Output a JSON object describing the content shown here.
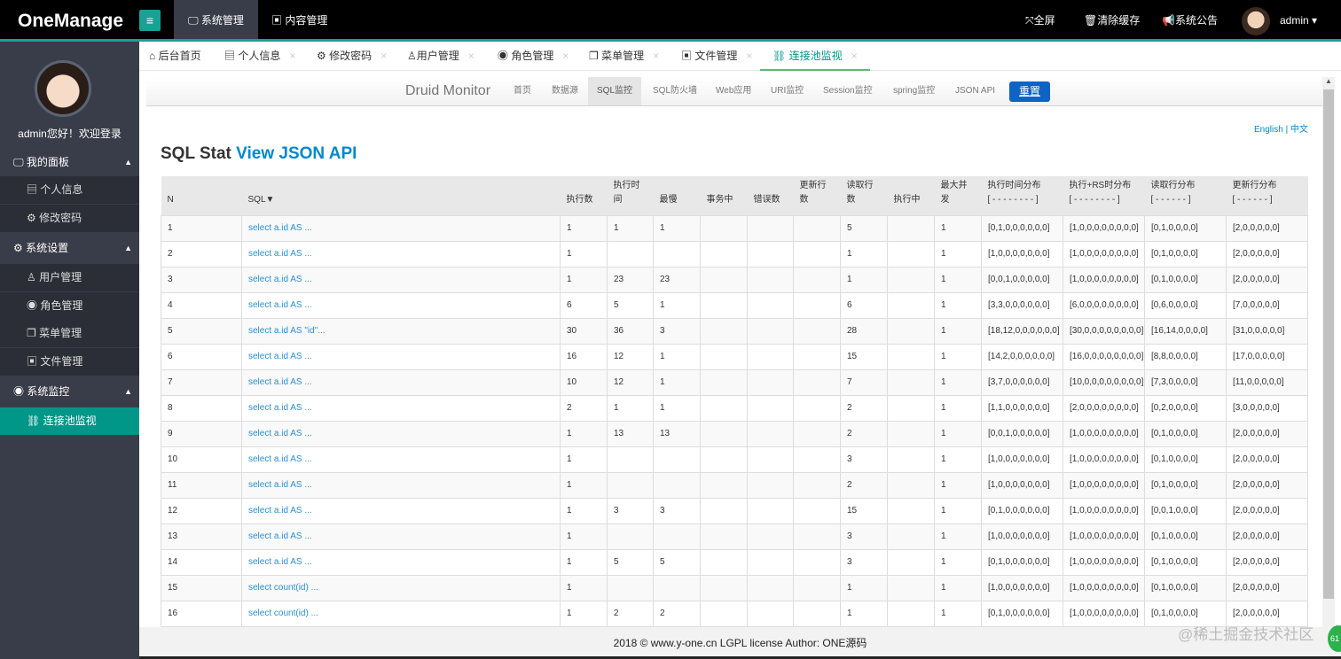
{
  "header": {
    "logo": "OneManage",
    "menu_icon": "hamburger-icon",
    "nav": [
      {
        "label": "系统管理",
        "icon": "monitor-icon",
        "active": true
      },
      {
        "label": "内容管理",
        "icon": "word-file-icon"
      }
    ],
    "right": [
      {
        "label": "全屏",
        "icon": "fullscreen-icon"
      },
      {
        "label": "清除缓存",
        "icon": "trash-icon"
      },
      {
        "label": "系统公告",
        "icon": "bullhorn-icon"
      }
    ],
    "user": "admin"
  },
  "sidebar": {
    "welcome": "admin您好！欢迎登录",
    "groups": [
      {
        "label": "我的面板",
        "icon": "desktop-icon",
        "items": [
          {
            "label": "个人信息",
            "icon": "id-card-icon"
          },
          {
            "label": "修改密码",
            "icon": "gear-icon"
          }
        ]
      },
      {
        "label": "系统设置",
        "icon": "gears-icon",
        "items": [
          {
            "label": "用户管理",
            "icon": "user-icon"
          },
          {
            "label": "角色管理",
            "icon": "user-circle-icon"
          },
          {
            "label": "菜单管理",
            "icon": "windows-icon"
          },
          {
            "label": "文件管理",
            "icon": "word-file-icon"
          }
        ]
      },
      {
        "label": "系统监控",
        "icon": "eye-icon",
        "items": [
          {
            "label": "连接池监视",
            "icon": "chain-icon",
            "active": true
          }
        ]
      }
    ]
  },
  "tabs": [
    {
      "label": "后台首页",
      "icon": "home-icon"
    },
    {
      "label": "个人信息",
      "icon": "id-card-icon"
    },
    {
      "label": "修改密码",
      "icon": "gear-icon"
    },
    {
      "label": "用户管理",
      "icon": "user-icon"
    },
    {
      "label": "角色管理",
      "icon": "user-circle-icon"
    },
    {
      "label": "菜单管理",
      "icon": "windows-icon"
    },
    {
      "label": "文件管理",
      "icon": "word-file-icon"
    },
    {
      "label": "连接池监视",
      "icon": "chain-icon",
      "active": true
    }
  ],
  "tab_close": "×",
  "druid": {
    "brand": "Druid Monitor",
    "nav": [
      "首页",
      "数据源",
      "SQL监控",
      "SQL防火墙",
      "Web应用",
      "URI监控",
      "Session监控",
      "spring监控",
      "JSON API"
    ],
    "active_nav": "SQL监控",
    "reset": "重置",
    "lang_en": "English",
    "lang_sep": "|",
    "lang_zh": "中文",
    "title": "SQL Stat",
    "title_link": "View JSON API"
  },
  "table": {
    "headers": [
      "N",
      "SQL▼",
      "执行数",
      "执行时间",
      "最慢",
      "事务中",
      "错误数",
      "更新行数",
      "读取行数",
      "执行中",
      "最大并发",
      "执行时间分布\n[ - - - - - - - - ]",
      "执行+RS时分布\n[ - - - - - - - - ]",
      "读取行分布\n[ - - - - - - ]",
      "更新行分布\n[ - - - - - - ]"
    ],
    "rows": [
      [
        "1",
        "select a.id AS ...",
        "1",
        "1",
        "1",
        "",
        "",
        "",
        "5",
        "",
        "1",
        "[0,1,0,0,0,0,0,0]",
        "[1,0,0,0,0,0,0,0,0]",
        "[0,1,0,0,0,0]",
        "[2,0,0,0,0,0]"
      ],
      [
        "2",
        "select a.id AS ...",
        "1",
        "",
        "",
        "",
        "",
        "",
        "1",
        "",
        "1",
        "[1,0,0,0,0,0,0,0]",
        "[1,0,0,0,0,0,0,0,0]",
        "[0,1,0,0,0,0]",
        "[2,0,0,0,0,0]"
      ],
      [
        "3",
        "select a.id AS ...",
        "1",
        "23",
        "23",
        "",
        "",
        "",
        "1",
        "",
        "1",
        "[0,0,1,0,0,0,0,0]",
        "[1,0,0,0,0,0,0,0,0]",
        "[0,1,0,0,0,0]",
        "[2,0,0,0,0,0]"
      ],
      [
        "4",
        "select a.id AS ...",
        "6",
        "5",
        "1",
        "",
        "",
        "",
        "6",
        "",
        "1",
        "[3,3,0,0,0,0,0,0]",
        "[6,0,0,0,0,0,0,0,0]",
        "[0,6,0,0,0,0]",
        "[7,0,0,0,0,0]"
      ],
      [
        "5",
        "select a.id AS \"id\"...",
        "30",
        "36",
        "3",
        "",
        "",
        "",
        "28",
        "",
        "1",
        "[18,12,0,0,0,0,0,0]",
        "[30,0,0,0,0,0,0,0,0]",
        "[16,14,0,0,0,0]",
        "[31,0,0,0,0,0]"
      ],
      [
        "6",
        "select a.id AS ...",
        "16",
        "12",
        "1",
        "",
        "",
        "",
        "15",
        "",
        "1",
        "[14,2,0,0,0,0,0,0]",
        "[16,0,0,0,0,0,0,0,0]",
        "[8,8,0,0,0,0]",
        "[17,0,0,0,0,0]"
      ],
      [
        "7",
        "select a.id AS ...",
        "10",
        "12",
        "1",
        "",
        "",
        "",
        "7",
        "",
        "1",
        "[3,7,0,0,0,0,0,0]",
        "[10,0,0,0,0,0,0,0,0]",
        "[7,3,0,0,0,0]",
        "[11,0,0,0,0,0]"
      ],
      [
        "8",
        "select a.id AS ...",
        "2",
        "1",
        "1",
        "",
        "",
        "",
        "2",
        "",
        "1",
        "[1,1,0,0,0,0,0,0]",
        "[2,0,0,0,0,0,0,0,0]",
        "[0,2,0,0,0,0]",
        "[3,0,0,0,0,0]"
      ],
      [
        "9",
        "select a.id AS ...",
        "1",
        "13",
        "13",
        "",
        "",
        "",
        "2",
        "",
        "1",
        "[0,0,1,0,0,0,0,0]",
        "[1,0,0,0,0,0,0,0,0]",
        "[0,1,0,0,0,0]",
        "[2,0,0,0,0,0]"
      ],
      [
        "10",
        "select a.id AS ...",
        "1",
        "",
        "",
        "",
        "",
        "",
        "3",
        "",
        "1",
        "[1,0,0,0,0,0,0,0]",
        "[1,0,0,0,0,0,0,0,0]",
        "[0,1,0,0,0,0]",
        "[2,0,0,0,0,0]"
      ],
      [
        "11",
        "select a.id AS ...",
        "1",
        "",
        "",
        "",
        "",
        "",
        "2",
        "",
        "1",
        "[1,0,0,0,0,0,0,0]",
        "[1,0,0,0,0,0,0,0,0]",
        "[0,1,0,0,0,0]",
        "[2,0,0,0,0,0]"
      ],
      [
        "12",
        "select a.id AS ...",
        "1",
        "3",
        "3",
        "",
        "",
        "",
        "15",
        "",
        "1",
        "[0,1,0,0,0,0,0,0]",
        "[1,0,0,0,0,0,0,0,0]",
        "[0,0,1,0,0,0]",
        "[2,0,0,0,0,0]"
      ],
      [
        "13",
        "select a.id AS ...",
        "1",
        "",
        "",
        "",
        "",
        "",
        "3",
        "",
        "1",
        "[1,0,0,0,0,0,0,0]",
        "[1,0,0,0,0,0,0,0,0]",
        "[0,1,0,0,0,0]",
        "[2,0,0,0,0,0]"
      ],
      [
        "14",
        "select a.id AS ...",
        "1",
        "5",
        "5",
        "",
        "",
        "",
        "3",
        "",
        "1",
        "[0,1,0,0,0,0,0,0]",
        "[1,0,0,0,0,0,0,0,0]",
        "[0,1,0,0,0,0]",
        "[2,0,0,0,0,0]"
      ],
      [
        "15",
        "select count(id) ...",
        "1",
        "",
        "",
        "",
        "",
        "",
        "1",
        "",
        "1",
        "[1,0,0,0,0,0,0,0]",
        "[1,0,0,0,0,0,0,0,0]",
        "[0,1,0,0,0,0]",
        "[2,0,0,0,0,0]"
      ],
      [
        "16",
        "select count(id) ...",
        "1",
        "2",
        "2",
        "",
        "",
        "",
        "1",
        "",
        "1",
        "[0,1,0,0,0,0,0,0]",
        "[1,0,0,0,0,0,0,0,0]",
        "[0,1,0,0,0,0]",
        "[2,0,0,0,0,0]"
      ]
    ]
  },
  "footer": "2018 © www.y-one.cn LGPL license Author: ONE源码",
  "watermark": "@稀土掘金技术社区",
  "badge": "61",
  "colors": {
    "accent": "#009688",
    "topbar": "#000000",
    "sidebar": "#393d49",
    "link": "#2a8fd0",
    "reset_button": "#0e63c4"
  }
}
